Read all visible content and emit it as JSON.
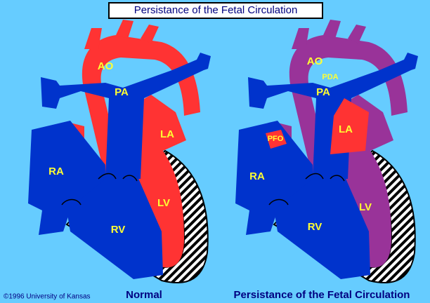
{
  "title": "Persistance of the Fetal Circulation",
  "copyright": "©1996 University of Kansas",
  "panels": [
    {
      "caption": "Normal",
      "labels": [
        "AO",
        "PA",
        "LA",
        "RA",
        "LV",
        "RV"
      ]
    },
    {
      "caption": "Persistance of the Fetal Circulation",
      "labels": [
        "AO",
        "PDA",
        "PA",
        "PFO",
        "LA",
        "RA",
        "LV",
        "RV"
      ]
    }
  ]
}
